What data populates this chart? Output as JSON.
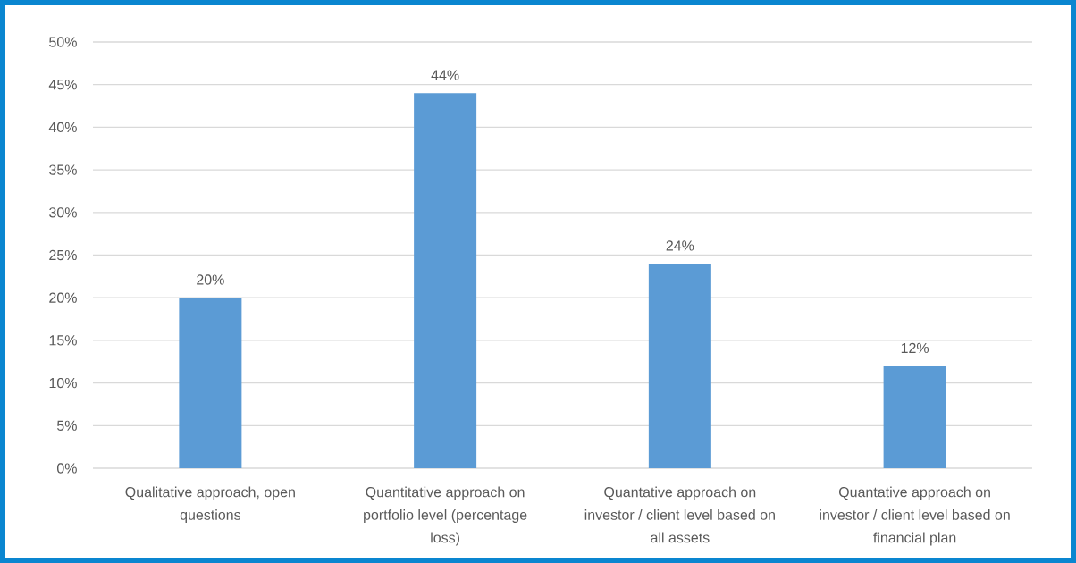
{
  "chart_data": {
    "type": "bar",
    "categories": [
      "Qualitative approach, open questions",
      "Quantitative approach on portfolio level (percentage loss)",
      "Quantative approach on investor / client level based on all assets",
      "Quantative approach on investor / client level based on financial plan"
    ],
    "values": [
      20,
      44,
      24,
      12
    ],
    "color": "#5b9bd5",
    "value_labels": [
      "20%",
      "44%",
      "24%",
      "12%"
    ],
    "ylim": [
      0,
      50
    ],
    "yticks": [
      {
        "value": 0,
        "label": "0%"
      },
      {
        "value": 5,
        "label": "5%"
      },
      {
        "value": 10,
        "label": "10%"
      },
      {
        "value": 15,
        "label": "15%"
      },
      {
        "value": 20,
        "label": "20%"
      },
      {
        "value": 25,
        "label": "25%"
      },
      {
        "value": 30,
        "label": "30%"
      },
      {
        "value": 35,
        "label": "35%"
      },
      {
        "value": 40,
        "label": "40%"
      },
      {
        "value": 45,
        "label": "45%"
      },
      {
        "value": 50,
        "label": "50%"
      }
    ],
    "grid": "y"
  }
}
